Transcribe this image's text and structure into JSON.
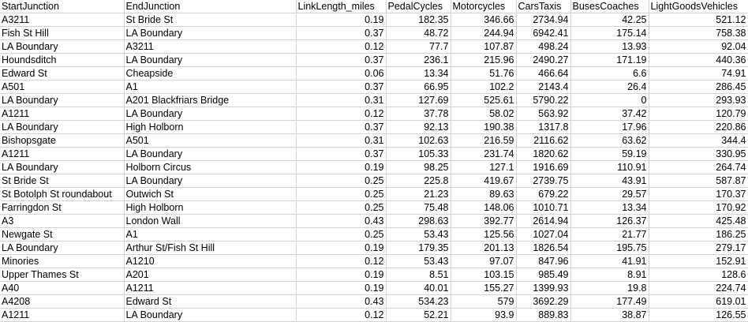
{
  "sheet": {
    "headers": [
      "StartJunction",
      "EndJunction",
      "LinkLength_miles",
      "PedalCycles",
      "Motorcycles",
      "CarsTaxis",
      "BusesCoaches",
      "LightGoodsVehicles"
    ],
    "rows": [
      [
        "A3211",
        "St Bride St",
        "0.19",
        "182.35",
        "346.66",
        "2734.94",
        "42.25",
        "521.12"
      ],
      [
        "Fish St Hill",
        "LA Boundary",
        "0.37",
        "48.72",
        "244.94",
        "6942.41",
        "175.14",
        "758.38"
      ],
      [
        "LA Boundary",
        "A3211",
        "0.12",
        "77.7",
        "107.87",
        "498.24",
        "13.93",
        "92.04"
      ],
      [
        "Houndsditch",
        "LA Boundary",
        "0.37",
        "236.1",
        "215.96",
        "2490.27",
        "171.19",
        "440.36"
      ],
      [
        "Edward St",
        "Cheapside",
        "0.06",
        "13.34",
        "51.76",
        "466.64",
        "6.6",
        "74.91"
      ],
      [
        "A501",
        "A1",
        "0.37",
        "66.95",
        "102.2",
        "2143.4",
        "26.4",
        "286.45"
      ],
      [
        "LA Boundary",
        "A201 Blackfriars Bridge",
        "0.31",
        "127.69",
        "525.61",
        "5790.22",
        "0",
        "293.93"
      ],
      [
        "A1211",
        "LA Boundary",
        "0.12",
        "37.78",
        "58.02",
        "563.92",
        "37.42",
        "120.79"
      ],
      [
        "LA Boundary",
        "High Holborn",
        "0.37",
        "92.13",
        "190.38",
        "1317.8",
        "17.96",
        "220.86"
      ],
      [
        "Bishopsgate",
        "A501",
        "0.31",
        "102.63",
        "216.59",
        "2116.62",
        "63.62",
        "344.4"
      ],
      [
        "A1211",
        "LA Boundary",
        "0.37",
        "105.33",
        "231.74",
        "1820.62",
        "59.19",
        "330.95"
      ],
      [
        "LA Boundary",
        "Holborn Circus",
        "0.19",
        "98.25",
        "127.1",
        "1916.69",
        "110.91",
        "264.74"
      ],
      [
        "St Bride St",
        "LA Boundary",
        "0.25",
        "225.8",
        "419.67",
        "2739.75",
        "43.91",
        "587.87"
      ],
      [
        "St Botolph St roundabout",
        "Outwich St",
        "0.25",
        "21.23",
        "89.63",
        "679.22",
        "29.57",
        "170.37"
      ],
      [
        "Farringdon St",
        "High Holborn",
        "0.25",
        "75.48",
        "148.06",
        "1010.71",
        "13.34",
        "170.92"
      ],
      [
        "A3",
        "London Wall",
        "0.43",
        "298.63",
        "392.77",
        "2614.94",
        "126.37",
        "425.48"
      ],
      [
        "Newgate St",
        "A1",
        "0.25",
        "53.43",
        "125.56",
        "1027.04",
        "21.77",
        "186.25"
      ],
      [
        "LA Boundary",
        "Arthur St/Fish St Hill",
        "0.19",
        "179.35",
        "201.13",
        "1826.54",
        "195.75",
        "279.17"
      ],
      [
        "Minories",
        "A1210",
        "0.12",
        "53.43",
        "97.07",
        "847.96",
        "41.91",
        "152.91"
      ],
      [
        "Upper Thames St",
        "A201",
        "0.19",
        "8.51",
        "103.15",
        "985.49",
        "8.91",
        "128.6"
      ],
      [
        "A40",
        "A1211",
        "0.19",
        "40.01",
        "155.27",
        "1399.93",
        "19.8",
        "224.74"
      ],
      [
        "A4208",
        "Edward St",
        "0.43",
        "534.23",
        "579",
        "3692.29",
        "177.49",
        "619.01"
      ],
      [
        "A1211",
        "LA Boundary",
        "0.12",
        "52.21",
        "93.9",
        "889.83",
        "38.87",
        "126.55"
      ]
    ]
  }
}
